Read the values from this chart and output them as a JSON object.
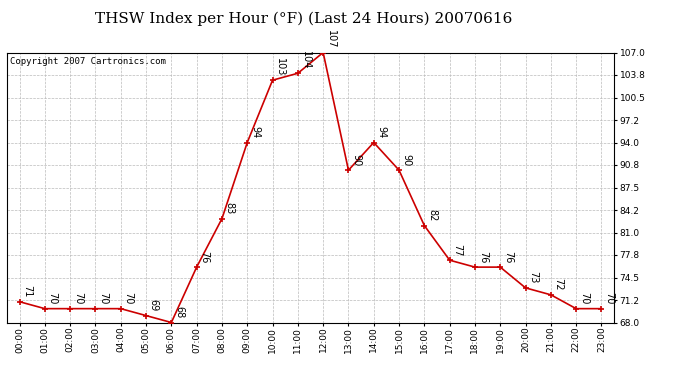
{
  "title": "THSW Index per Hour (°F) (Last 24 Hours) 20070616",
  "copyright": "Copyright 2007 Cartronics.com",
  "hours": [
    "00:00",
    "01:00",
    "02:00",
    "03:00",
    "04:00",
    "05:00",
    "06:00",
    "07:00",
    "08:00",
    "09:00",
    "10:00",
    "11:00",
    "12:00",
    "13:00",
    "14:00",
    "15:00",
    "16:00",
    "17:00",
    "18:00",
    "19:00",
    "20:00",
    "21:00",
    "22:00",
    "23:00"
  ],
  "values": [
    71,
    70,
    70,
    70,
    70,
    69,
    68,
    76,
    83,
    94,
    103,
    104,
    107,
    90,
    94,
    90,
    82,
    77,
    76,
    76,
    73,
    72,
    70,
    70
  ],
  "ylim_min": 68.0,
  "ylim_max": 107.0,
  "yticks": [
    68.0,
    71.2,
    74.5,
    77.8,
    81.0,
    84.2,
    87.5,
    90.8,
    94.0,
    97.2,
    100.5,
    103.8,
    107.0
  ],
  "line_color": "#cc0000",
  "marker_color": "#cc0000",
  "bg_color": "#ffffff",
  "grid_color": "#bbbbbb",
  "title_fontsize": 11,
  "copyright_fontsize": 6.5,
  "label_fontsize": 7,
  "tick_fontsize": 6.5
}
